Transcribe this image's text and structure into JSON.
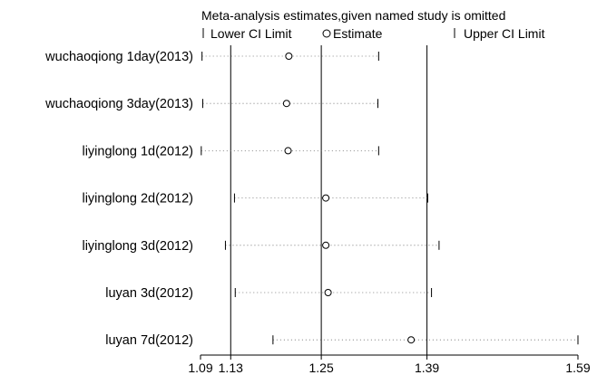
{
  "chart_data": {
    "type": "scatter",
    "title": "Meta-analysis estimates,given named study is omitted",
    "legend": {
      "placement": "top",
      "entries": [
        {
          "symbol": "|",
          "label": "Lower CI Limit"
        },
        {
          "symbol": "o",
          "label": "Estimate"
        },
        {
          "symbol": "|",
          "label": "Upper CI Limit"
        }
      ]
    },
    "xlim": [
      1.09,
      1.59
    ],
    "x_ticks": [
      1.09,
      1.13,
      1.25,
      1.39,
      1.59
    ],
    "x_tick_labels": [
      "1.09",
      "1.13",
      "1.25",
      "1.39",
      "1.59"
    ],
    "reference_lines": [
      1.13,
      1.25,
      1.39
    ],
    "grid": false,
    "studies": [
      {
        "label": "wuchaoqiong 1day(2013)",
        "lower": 1.092,
        "estimate": 1.207,
        "upper": 1.326
      },
      {
        "label": "wuchaoqiong 3day(2013)",
        "lower": 1.093,
        "estimate": 1.204,
        "upper": 1.325
      },
      {
        "label": "liyinglong 1d(2012)",
        "lower": 1.091,
        "estimate": 1.206,
        "upper": 1.326
      },
      {
        "label": "liyinglong 2d(2012)",
        "lower": 1.135,
        "estimate": 1.256,
        "upper": 1.391
      },
      {
        "label": "liyinglong 3d(2012)",
        "lower": 1.123,
        "estimate": 1.256,
        "upper": 1.406
      },
      {
        "label": "luyan 3d(2012)",
        "lower": 1.136,
        "estimate": 1.259,
        "upper": 1.396
      },
      {
        "label": "luyan 7d(2012)",
        "lower": 1.186,
        "estimate": 1.369,
        "upper": 1.59
      }
    ]
  }
}
